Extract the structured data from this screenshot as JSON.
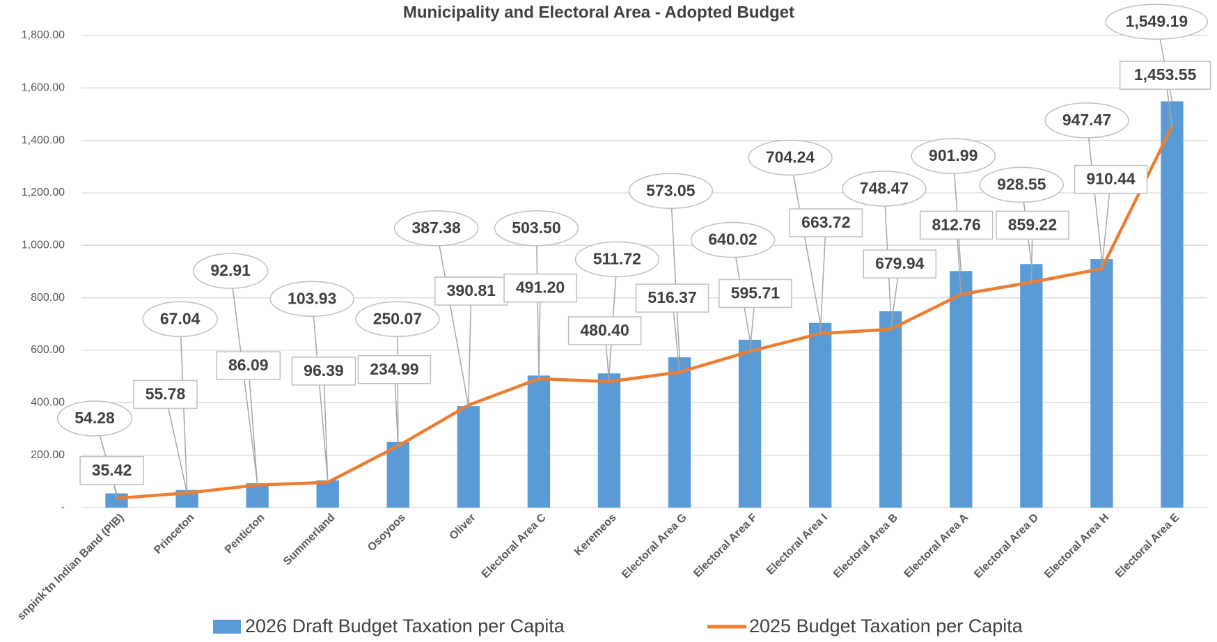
{
  "chart_data": {
    "type": "bar_line",
    "title": "Municipality and Electoral Area - Adopted Budget",
    "categories": [
      "snpink'tn Indian Band (PIB)",
      "Princeton",
      "Penticton",
      "Summerland",
      "Osoyoos",
      "Oliver",
      "Electoral Area  C",
      "Keremeos",
      "Electoral Area G",
      "Electoral Area  F",
      "Electoral Area  I",
      "Electoral Area  B",
      "Electoral Area  A",
      "Electoral Area  D",
      "Electoral Area  H",
      "Electoral Area  E"
    ],
    "series": [
      {
        "name": "2026 Draft Budget Taxation per Capita",
        "type": "bar",
        "color": "#5b9bd5",
        "values": [
          54.28,
          67.04,
          92.91,
          103.93,
          250.07,
          387.38,
          503.5,
          511.72,
          573.05,
          640.02,
          704.24,
          748.47,
          901.99,
          928.55,
          947.47,
          1549.19
        ],
        "value_labels": [
          "54.28",
          "67.04",
          "92.91",
          "103.93",
          "250.07",
          "387.38",
          "503.50",
          "511.72",
          "573.05",
          "640.02",
          "704.24",
          "748.47",
          "901.99",
          "928.55",
          "947.47",
          "1,549.19"
        ]
      },
      {
        "name": "2025 Budget Taxation per Capita",
        "type": "line",
        "color": "#ed7d31",
        "values": [
          35.42,
          55.78,
          86.09,
          96.39,
          234.99,
          390.81,
          491.2,
          480.4,
          516.37,
          595.71,
          663.72,
          679.94,
          812.76,
          859.22,
          910.44,
          1453.55
        ],
        "value_labels": [
          "35.42",
          "55.78",
          "86.09",
          "96.39",
          "234.99",
          "390.81",
          "491.20",
          "480.40",
          "516.37",
          "595.71",
          "663.72",
          "679.94",
          "812.76",
          "859.22",
          "910.44",
          "1,453.55"
        ]
      }
    ],
    "ylim": [
      0,
      1800
    ],
    "yticks": [
      {
        "value": 0,
        "label": "-"
      },
      {
        "value": 200,
        "label": "200.00"
      },
      {
        "value": 400,
        "label": "400.00"
      },
      {
        "value": 600,
        "label": "600.00"
      },
      {
        "value": 800,
        "label": "800.00"
      },
      {
        "value": 1000,
        "label": "1,000.00"
      },
      {
        "value": 1200,
        "label": "1,200.00"
      },
      {
        "value": 1400,
        "label": "1,400.00"
      },
      {
        "value": 1600,
        "label": "1,600.00"
      },
      {
        "value": 1800,
        "label": "1,800.00"
      }
    ],
    "grid": true
  }
}
